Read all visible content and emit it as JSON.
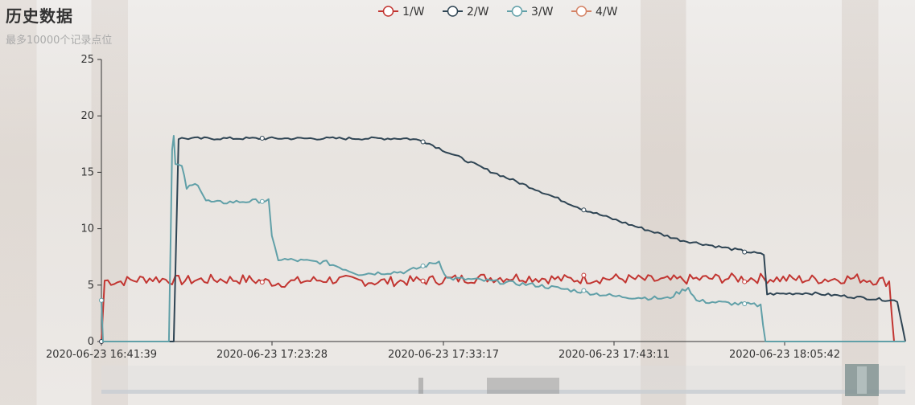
{
  "title": "历史数据",
  "subtitle": "最多10000个记录点位",
  "chart_data": {
    "type": "line",
    "legend_position": "top-center",
    "series": [
      {
        "name": "1/W",
        "color": "#c23531"
      },
      {
        "name": "2/W",
        "color": "#2f4554"
      },
      {
        "name": "3/W",
        "color": "#61a0a8"
      },
      {
        "name": "4/W",
        "color": "#d48265"
      }
    ],
    "x_tick_labels": [
      "2020-06-23 16:41:39",
      "2020-06-23 17:23:28",
      "2020-06-23 17:33:17",
      "2020-06-23 17:43:11",
      "2020-06-23 18:05:42"
    ],
    "y_ticks": [
      0,
      5,
      10,
      15,
      20,
      25
    ],
    "ylim": [
      0,
      25
    ],
    "series_values": {
      "1/W": [
        [
          0,
          0
        ],
        [
          2,
          5.4
        ],
        [
          10,
          5.3
        ],
        [
          30,
          5.6
        ],
        [
          50,
          5.4
        ],
        [
          70,
          5.5
        ],
        [
          90,
          5.5
        ],
        [
          110,
          5.2
        ],
        [
          140,
          5.5
        ],
        [
          170,
          5.3
        ],
        [
          200,
          5.4
        ],
        [
          230,
          5.6
        ],
        [
          260,
          5.7
        ],
        [
          290,
          5.5
        ],
        [
          320,
          5.6
        ],
        [
          350,
          5.4
        ],
        [
          380,
          5.6
        ],
        [
          410,
          5.6
        ],
        [
          440,
          5.5
        ],
        [
          470,
          5.6
        ],
        [
          490,
          5.3
        ],
        [
          493,
          0
        ],
        [
          500,
          0
        ]
      ],
      "2/W": [
        [
          0,
          0
        ],
        [
          45,
          0
        ],
        [
          48,
          18
        ],
        [
          100,
          18
        ],
        [
          150,
          18
        ],
        [
          190,
          18
        ],
        [
          200,
          17.8
        ],
        [
          212,
          17
        ],
        [
          240,
          15.2
        ],
        [
          270,
          13.5
        ],
        [
          300,
          11.7
        ],
        [
          330,
          10.3
        ],
        [
          360,
          9
        ],
        [
          400,
          8
        ],
        [
          412,
          7.7
        ],
        [
          414,
          4.2
        ],
        [
          440,
          4.3
        ],
        [
          480,
          3.8
        ],
        [
          495,
          3.6
        ],
        [
          500,
          0
        ]
      ],
      "3/W": [
        [
          0,
          3.8
        ],
        [
          1,
          0
        ],
        [
          42,
          0
        ],
        [
          44,
          17
        ],
        [
          45,
          18.4
        ],
        [
          46,
          15.7
        ],
        [
          50,
          15.5
        ],
        [
          53,
          13.6
        ],
        [
          60,
          14
        ],
        [
          65,
          12.5
        ],
        [
          70,
          12.3
        ],
        [
          104,
          12.5
        ],
        [
          106,
          9.2
        ],
        [
          110,
          7.3
        ],
        [
          140,
          7
        ],
        [
          160,
          6
        ],
        [
          190,
          6.2
        ],
        [
          210,
          7.1
        ],
        [
          215,
          5.6
        ],
        [
          230,
          5.5
        ],
        [
          270,
          5
        ],
        [
          300,
          4.4
        ],
        [
          320,
          4.0
        ],
        [
          352,
          3.8
        ],
        [
          365,
          4.8
        ],
        [
          370,
          3.6
        ],
        [
          410,
          3.2
        ],
        [
          413,
          0
        ],
        [
          500,
          0
        ]
      ],
      "4/W": []
    }
  },
  "zoom_slider": {
    "start_pct": 0,
    "end_pct": 96
  }
}
